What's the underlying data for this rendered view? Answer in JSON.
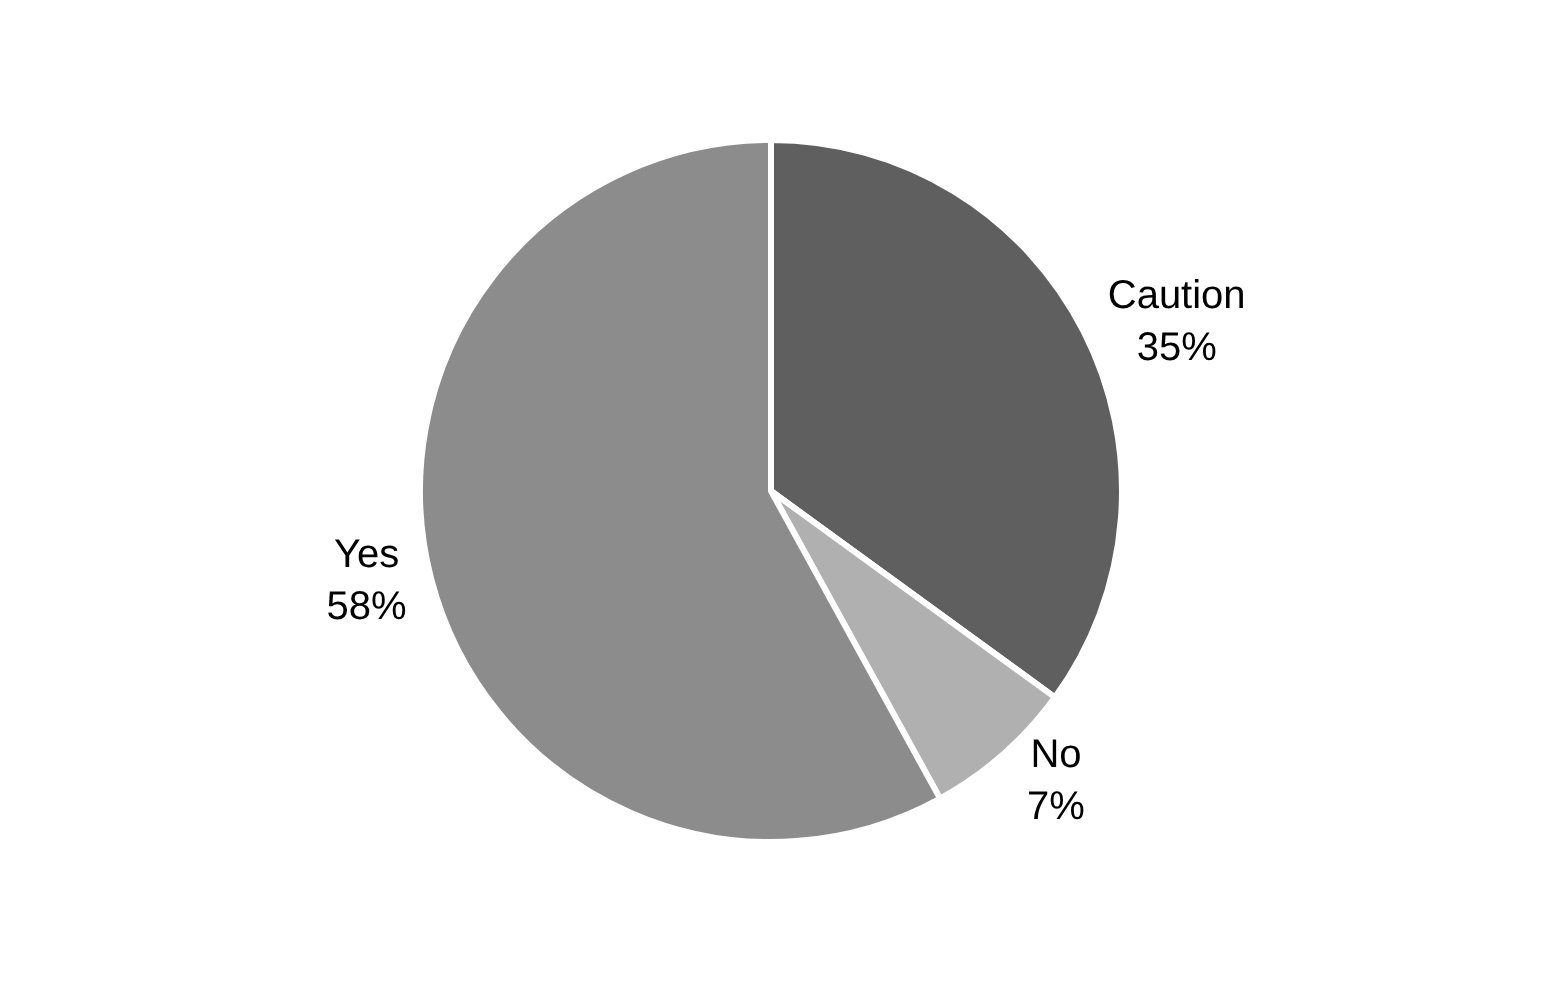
{
  "chart_data": {
    "type": "pie",
    "categories": [
      "Caution",
      "No",
      "Yes"
    ],
    "values": [
      35,
      7,
      58
    ],
    "value_labels": [
      "35%",
      "7%",
      "58%"
    ],
    "colors": [
      "#5f5f5f",
      "#b0b0b0",
      "#8c8c8c"
    ],
    "legend": false
  }
}
